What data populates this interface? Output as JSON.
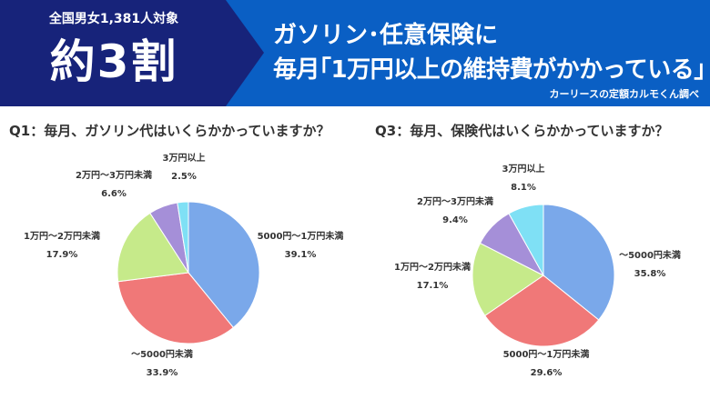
{
  "header": {
    "survey": "全国男女1,381人対象",
    "big": "約3割",
    "headline1": "ガソリン･任意保険に",
    "headline2": "毎月｢1万円以上の維持費がかかっている｣",
    "source": "カーリースの定額カルモくん調べ"
  },
  "colors": {
    "blue": "#7aa8ea",
    "red": "#f07878",
    "green": "#c6ea8a",
    "purple": "#a58fd8",
    "cyan": "#7fe0f5",
    "header_dark": "#17237a",
    "header_blue": "#0a5fc4"
  },
  "chart_data": [
    {
      "type": "pie",
      "title": "Q1：毎月、ガソリン代はいくらかかっていますか？",
      "slices": [
        {
          "label": "5000円〜1万円未満",
          "value": 39.1,
          "pct": "39.1%",
          "color": "blue"
        },
        {
          "label": "〜5000円未満",
          "value": 33.9,
          "pct": "33.9%",
          "color": "red"
        },
        {
          "label": "1万円〜2万円未満",
          "value": 17.9,
          "pct": "17.9%",
          "color": "green"
        },
        {
          "label": "2万円〜3万円未満",
          "value": 6.6,
          "pct": "6.6%",
          "color": "purple"
        },
        {
          "label": "3万円以上",
          "value": 2.5,
          "pct": "2.5%",
          "color": "cyan"
        }
      ]
    },
    {
      "type": "pie",
      "title": "Q3：毎月、保険代はいくらかかっていますか？",
      "slices": [
        {
          "label": "〜5000円未満",
          "value": 35.8,
          "pct": "35.8%",
          "color": "blue"
        },
        {
          "label": "5000円〜1万円未満",
          "value": 29.6,
          "pct": "29.6%",
          "color": "red"
        },
        {
          "label": "1万円〜2万円未満",
          "value": 17.1,
          "pct": "17.1%",
          "color": "green"
        },
        {
          "label": "2万円〜3万円未満",
          "value": 9.4,
          "pct": "9.4%",
          "color": "purple"
        },
        {
          "label": "3万円以上",
          "value": 8.1,
          "pct": "8.1%",
          "color": "cyan"
        }
      ]
    }
  ]
}
